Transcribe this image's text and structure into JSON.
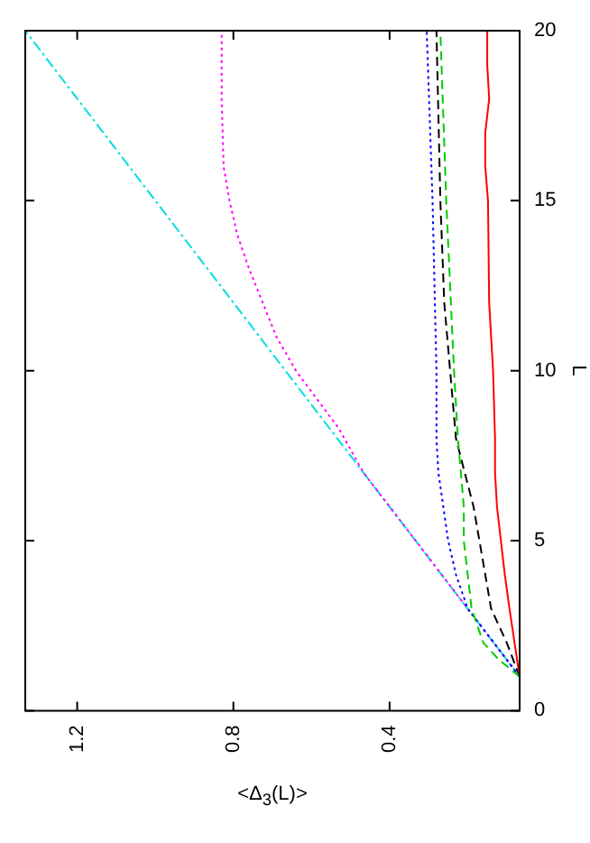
{
  "chart_data": {
    "type": "line",
    "xlabel": "<Δ$_{3}$(L)>",
    "ylabel": "L",
    "xlim": [
      1.333,
      0.067
    ],
    "ylim": [
      0,
      20
    ],
    "xticks": [
      1.2,
      0.8,
      0.4
    ],
    "yticks": [
      0,
      5,
      10,
      15,
      20
    ],
    "grid": false,
    "legend": false,
    "marker": "none",
    "series": [
      {
        "color": "#ff0000",
        "line_style": "solid",
        "x": [
          0.067,
          0.08,
          0.093,
          0.105,
          0.115,
          0.125,
          0.13,
          0.13,
          0.135,
          0.145,
          0.148,
          0.155,
          0.155,
          0.145,
          0.15,
          0.15
        ],
        "values": [
          1,
          2,
          3,
          4,
          5,
          6,
          7,
          8,
          10,
          12,
          15,
          16,
          17,
          18,
          19,
          20
        ]
      },
      {
        "color": "#00cc00",
        "line_style": "dashed",
        "x": [
          0.067,
          0.12,
          0.16,
          0.19,
          0.2,
          0.21,
          0.21,
          0.225,
          0.235,
          0.255,
          0.27
        ],
        "values": [
          1,
          1.5,
          2,
          3,
          4,
          5,
          6,
          8,
          10,
          15,
          20
        ]
      },
      {
        "color": "#0000ff",
        "line_style": "dotted",
        "x": [
          0.067,
          0.133,
          0.2,
          0.215,
          0.23,
          0.25,
          0.275,
          0.28,
          0.28,
          0.29,
          0.305
        ],
        "values": [
          1,
          2,
          3,
          3.5,
          4,
          5,
          7,
          8,
          10,
          15,
          20
        ]
      },
      {
        "color": "#000000",
        "line_style": "dashed",
        "x": [
          0.067,
          0.1,
          0.14,
          0.155,
          0.17,
          0.185,
          0.23,
          0.245,
          0.26,
          0.27,
          0.28
        ],
        "values": [
          1,
          2,
          3,
          4,
          5,
          6,
          8,
          10,
          12,
          15,
          20
        ]
      },
      {
        "color": "#ff00ff",
        "line_style": "dotted",
        "x": [
          0.067,
          0.2,
          0.333,
          0.467,
          0.53,
          0.64,
          0.69,
          0.725,
          0.76,
          0.79,
          0.81,
          0.825,
          0.83,
          0.83
        ],
        "values": [
          1,
          3,
          5,
          7,
          8.3,
          10,
          11,
          12,
          13,
          14,
          15,
          16,
          18,
          20
        ]
      },
      {
        "color": "#00dddd",
        "line_style": "dashdot",
        "x": [
          0.067,
          1.333
        ],
        "values": [
          1,
          20
        ]
      }
    ]
  }
}
